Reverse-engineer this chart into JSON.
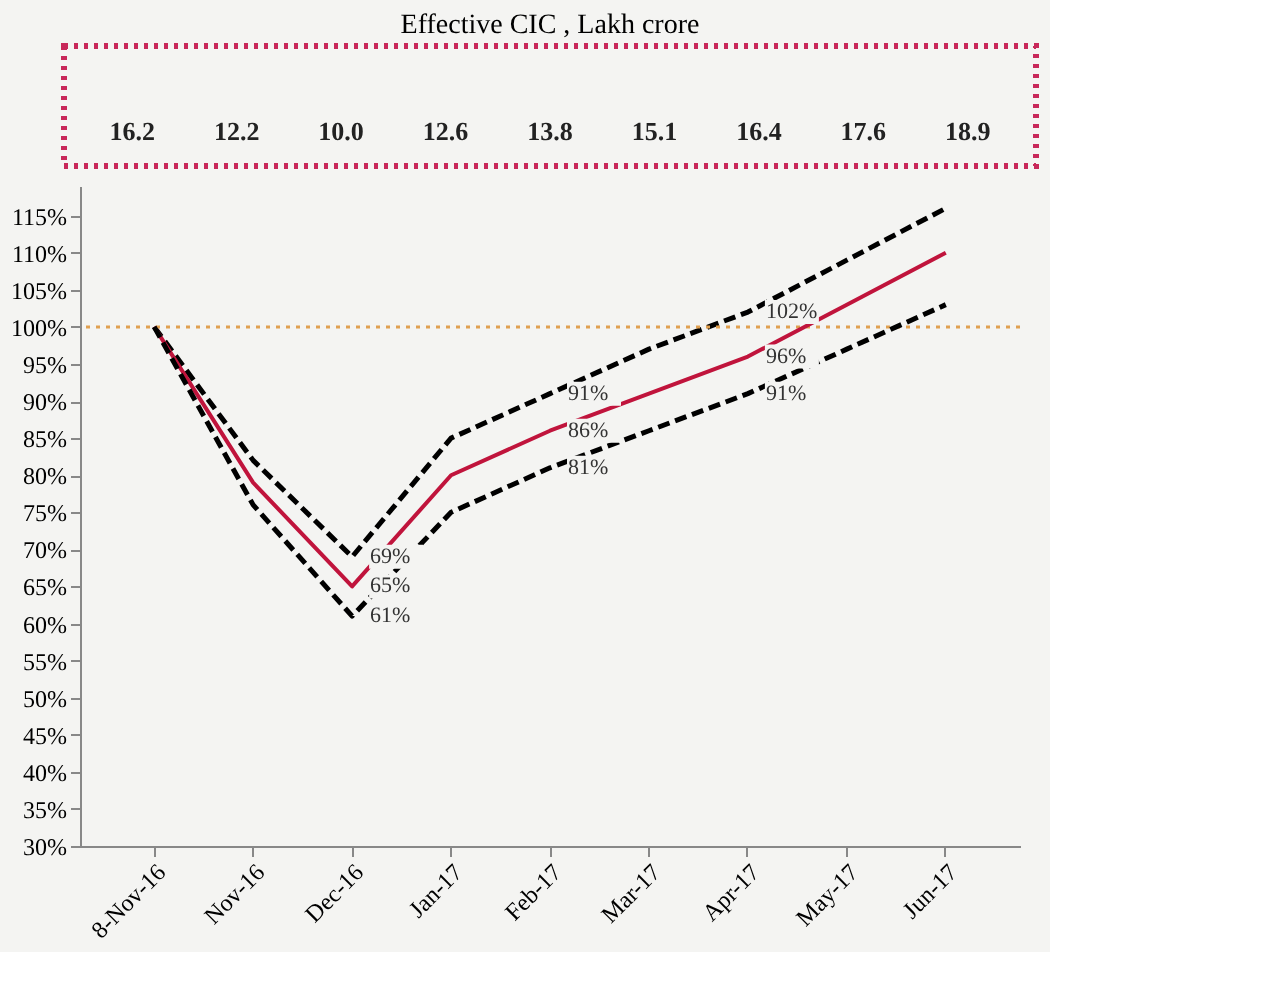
{
  "chart_data": [
    {
      "type": "other",
      "title": "Effective CIC , Lakh crore",
      "value_labels": [
        "16.2",
        "12.2",
        "10.0",
        "12.6",
        "13.8",
        "15.1",
        "16.4",
        "17.6",
        "18.9"
      ],
      "color": "#c8285a"
    },
    {
      "type": "line",
      "categories": [
        "8-Nov-16",
        "Nov-16",
        "Dec-16",
        "Jan-17",
        "Feb-17",
        "Mar-17",
        "Apr-17",
        "May-17",
        "Jun-17"
      ],
      "series": [
        {
          "color": "#000000",
          "line_style": "dashed",
          "values": [
            100,
            82,
            69,
            85,
            91,
            97,
            102,
            109,
            116
          ],
          "value_labels": [
            null,
            null,
            "69%",
            null,
            "91%",
            null,
            "102%",
            null,
            null
          ]
        },
        {
          "color": "#c0143c",
          "line_style": "solid",
          "values": [
            100,
            79,
            65,
            80,
            86,
            91,
            96,
            103,
            110
          ],
          "value_labels": [
            null,
            null,
            "65%",
            null,
            "86%",
            null,
            "96%",
            null,
            null
          ]
        },
        {
          "color": "#000000",
          "line_style": "dashed",
          "values": [
            100,
            76,
            61,
            75,
            81,
            86,
            91,
            97,
            103
          ],
          "value_labels": [
            null,
            null,
            "61%",
            null,
            "81%",
            null,
            "91%",
            null,
            null
          ]
        }
      ],
      "ylim": [
        30,
        119
      ],
      "yticks": [
        {
          "value": 30,
          "label": "30%"
        },
        {
          "value": 35,
          "label": "35%"
        },
        {
          "value": 40,
          "label": "40%"
        },
        {
          "value": 45,
          "label": "45%"
        },
        {
          "value": 50,
          "label": "50%"
        },
        {
          "value": 55,
          "label": "55%"
        },
        {
          "value": 60,
          "label": "60%"
        },
        {
          "value": 65,
          "label": "65%"
        },
        {
          "value": 70,
          "label": "70%"
        },
        {
          "value": 75,
          "label": "75%"
        },
        {
          "value": 80,
          "label": "80%"
        },
        {
          "value": 85,
          "label": "85%"
        },
        {
          "value": 90,
          "label": "90%"
        },
        {
          "value": 95,
          "label": "95%"
        },
        {
          "value": 100,
          "label": "100%"
        },
        {
          "value": 105,
          "label": "105%"
        },
        {
          "value": 110,
          "label": "110%"
        },
        {
          "value": 115,
          "label": "115%"
        }
      ],
      "ref_lines": [
        {
          "axis": "y",
          "value": 100,
          "color": "#e0a050",
          "line_style": "dotted"
        }
      ],
      "grid": false,
      "legend": false
    }
  ]
}
